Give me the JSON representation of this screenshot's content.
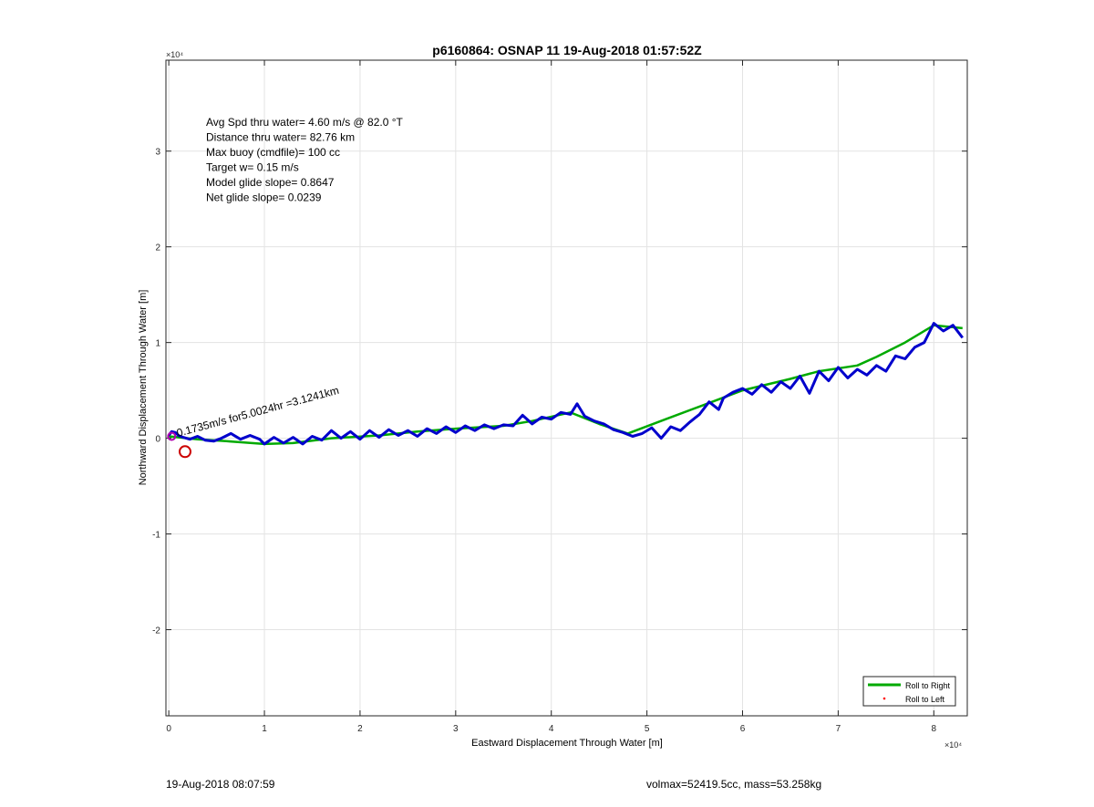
{
  "chart_data": {
    "type": "line",
    "title": "p6160864: OSNAP 11 19-Aug-2018 01:57:52Z",
    "xlabel": "Eastward Displacement Through Water [m]",
    "ylabel": "Northward Displacement Through Water [m]",
    "x_exponent_label": "×10⁴",
    "y_exponent_label": "×10⁴",
    "xlim": [
      -300,
      83500
    ],
    "ylim": [
      -29000,
      39500
    ],
    "xticks": [
      0,
      10000,
      20000,
      30000,
      40000,
      50000,
      60000,
      70000,
      80000
    ],
    "xtick_labels": [
      "0",
      "1",
      "2",
      "3",
      "4",
      "5",
      "6",
      "7",
      "8"
    ],
    "yticks": [
      -20000,
      -10000,
      0,
      10000,
      20000,
      30000
    ],
    "ytick_labels": [
      "-2",
      "-1",
      "0",
      "1",
      "2",
      "3"
    ],
    "grid": true,
    "legend_position": "bottom-right",
    "series": [
      {
        "name": "Roll to Right",
        "color": "#00aa00",
        "style": "line",
        "x": [
          0,
          3000,
          6000,
          10000,
          13000,
          17000,
          22000,
          26000,
          30000,
          35000,
          38000,
          42000,
          45000,
          48000,
          52000,
          56000,
          60000,
          65000,
          68000,
          72000,
          74000,
          77000,
          80000,
          83000
        ],
        "y": [
          200,
          -100,
          -300,
          -600,
          -500,
          0,
          300,
          700,
          1000,
          1300,
          1800,
          2700,
          1500,
          500,
          2000,
          3500,
          5000,
          6200,
          7000,
          7600,
          8500,
          10000,
          11800,
          11500
        ]
      },
      {
        "name": "Roll to Left",
        "color": "#ff0000",
        "style": "dots",
        "x": [],
        "y": []
      },
      {
        "name": "",
        "color": "#0000cc",
        "style": "line",
        "x": [
          0,
          300,
          700,
          1000,
          1500,
          2200,
          3000,
          3800,
          4700,
          5500,
          6500,
          7500,
          8500,
          9500,
          10000,
          11000,
          12000,
          13000,
          14000,
          15000,
          16000,
          17000,
          18000,
          19000,
          20000,
          21000,
          22000,
          23000,
          24000,
          25000,
          26000,
          27000,
          28000,
          29000,
          30000,
          31000,
          32000,
          33000,
          34000,
          35000,
          36000,
          37000,
          38000,
          39000,
          40000,
          41000,
          42000,
          42700,
          43500,
          44500,
          45500,
          46500,
          47500,
          48500,
          49500,
          50500,
          51500,
          52500,
          53500,
          54500,
          55500,
          56500,
          57500,
          58000,
          59000,
          60000,
          61000,
          62000,
          63000,
          64000,
          65000,
          66000,
          67000,
          68000,
          69000,
          70000,
          71000,
          72000,
          73000,
          74000,
          75000,
          76000,
          77000,
          78000,
          79000,
          80000,
          81000,
          82000,
          83000
        ],
        "y": [
          300,
          700,
          600,
          300,
          100,
          -100,
          200,
          -200,
          -300,
          0,
          500,
          -100,
          300,
          -100,
          -600,
          100,
          -500,
          100,
          -600,
          200,
          -200,
          800,
          0,
          700,
          -100,
          800,
          100,
          900,
          300,
          800,
          200,
          1000,
          500,
          1200,
          600,
          1300,
          800,
          1400,
          1000,
          1400,
          1300,
          2400,
          1500,
          2200,
          2000,
          2700,
          2500,
          3600,
          2300,
          1800,
          1500,
          900,
          600,
          200,
          500,
          1100,
          0,
          1200,
          800,
          1700,
          2500,
          3800,
          3000,
          4200,
          4800,
          5200,
          4600,
          5600,
          4800,
          5900,
          5200,
          6500,
          4700,
          7000,
          6000,
          7400,
          6300,
          7200,
          6600,
          7600,
          7000,
          8600,
          8300,
          9500,
          10000,
          12000,
          11200,
          11800,
          10500
        ]
      },
      {
        "name": "",
        "color": "#cc0000",
        "style": "circle-marker",
        "x": [
          1700
        ],
        "y": [
          -1400
        ]
      },
      {
        "name": "",
        "color": "#b000b0",
        "style": "circle-marker",
        "x": [
          300
        ],
        "y": [
          200
        ]
      }
    ],
    "annotations": {
      "info_lines": [
        "Avg Spd thru water=  4.60 m/s @  82.0 °T",
        "Distance thru water= 82.76 km",
        "Max buoy (cmdfile)= 100 cc",
        "Target w= 0.15 m/s",
        "Model glide slope= 0.8647",
        "Net glide slope= 0.0239"
      ],
      "current_label": "0.1735m/s for5.0024hr =3.1241km"
    }
  },
  "footer": {
    "left": "19-Aug-2018 08:07:59",
    "right": "volmax=52419.5cc, mass=53.258kg"
  }
}
